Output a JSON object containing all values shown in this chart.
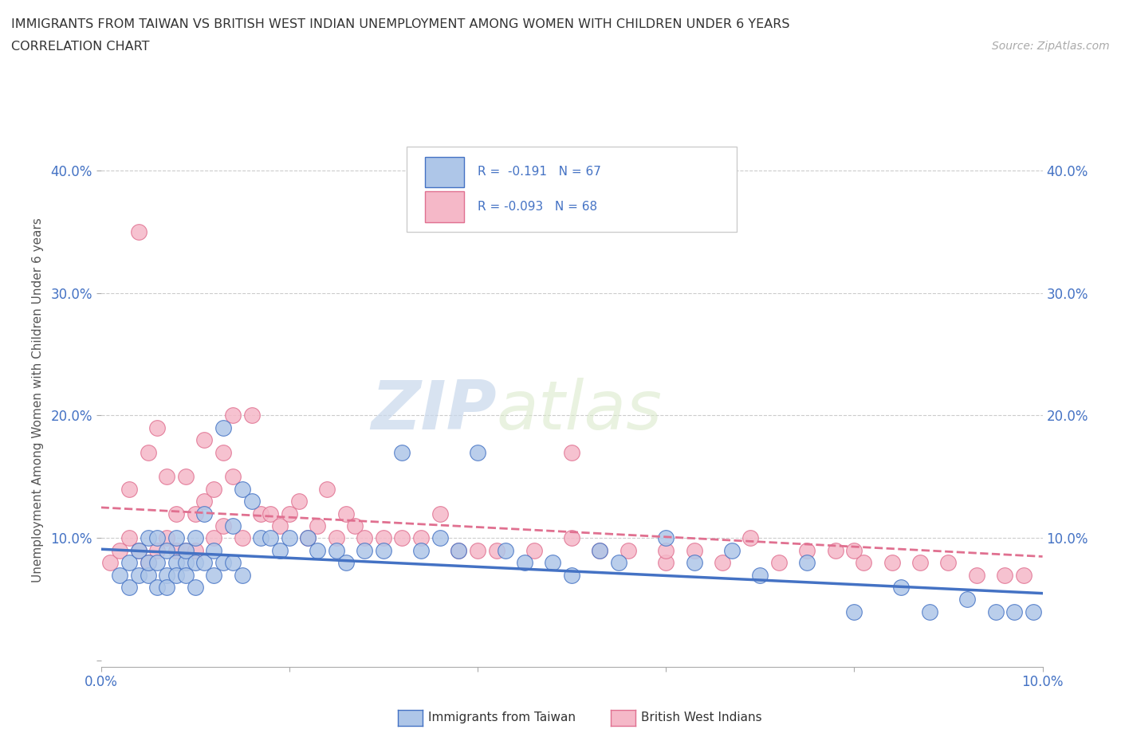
{
  "title_line1": "IMMIGRANTS FROM TAIWAN VS BRITISH WEST INDIAN UNEMPLOYMENT AMONG WOMEN WITH CHILDREN UNDER 6 YEARS",
  "title_line2": "CORRELATION CHART",
  "source_text": "Source: ZipAtlas.com",
  "ylabel": "Unemployment Among Women with Children Under 6 years",
  "xmin": 0.0,
  "xmax": 0.1,
  "ymin": -0.005,
  "ymax": 0.43,
  "yticks": [
    0.0,
    0.1,
    0.2,
    0.3,
    0.4
  ],
  "ytick_labels_left": [
    "",
    "10.0%",
    "20.0%",
    "30.0%",
    "40.0%"
  ],
  "ytick_labels_right": [
    "",
    "10.0%",
    "20.0%",
    "30.0%",
    "40.0%"
  ],
  "xticks": [
    0.0,
    0.02,
    0.04,
    0.06,
    0.08,
    0.1
  ],
  "xtick_labels": [
    "0.0%",
    "",
    "",
    "",
    "",
    "10.0%"
  ],
  "taiwan_r": -0.191,
  "taiwan_n": 67,
  "bwi_r": -0.093,
  "bwi_n": 68,
  "taiwan_color": "#aec6e8",
  "bwi_color": "#f5b8c8",
  "taiwan_edge_color": "#4472c4",
  "bwi_edge_color": "#e07090",
  "taiwan_line_color": "#4472c4",
  "bwi_line_color": "#e07090",
  "watermark_zip": "ZIP",
  "watermark_atlas": "atlas",
  "taiwan_scatter_x": [
    0.002,
    0.003,
    0.003,
    0.004,
    0.004,
    0.005,
    0.005,
    0.005,
    0.006,
    0.006,
    0.006,
    0.007,
    0.007,
    0.007,
    0.008,
    0.008,
    0.008,
    0.009,
    0.009,
    0.009,
    0.01,
    0.01,
    0.01,
    0.011,
    0.011,
    0.012,
    0.012,
    0.013,
    0.013,
    0.014,
    0.014,
    0.015,
    0.015,
    0.016,
    0.017,
    0.018,
    0.019,
    0.02,
    0.022,
    0.023,
    0.025,
    0.026,
    0.028,
    0.03,
    0.032,
    0.034,
    0.036,
    0.038,
    0.04,
    0.043,
    0.045,
    0.048,
    0.05,
    0.053,
    0.055,
    0.06,
    0.063,
    0.067,
    0.07,
    0.075,
    0.08,
    0.085,
    0.088,
    0.092,
    0.095,
    0.097,
    0.099
  ],
  "taiwan_scatter_y": [
    0.07,
    0.06,
    0.08,
    0.07,
    0.09,
    0.07,
    0.08,
    0.1,
    0.06,
    0.08,
    0.1,
    0.07,
    0.09,
    0.06,
    0.08,
    0.07,
    0.1,
    0.08,
    0.09,
    0.07,
    0.1,
    0.08,
    0.06,
    0.12,
    0.08,
    0.09,
    0.07,
    0.19,
    0.08,
    0.11,
    0.08,
    0.14,
    0.07,
    0.13,
    0.1,
    0.1,
    0.09,
    0.1,
    0.1,
    0.09,
    0.09,
    0.08,
    0.09,
    0.09,
    0.17,
    0.09,
    0.1,
    0.09,
    0.17,
    0.09,
    0.08,
    0.08,
    0.07,
    0.09,
    0.08,
    0.1,
    0.08,
    0.09,
    0.07,
    0.08,
    0.04,
    0.06,
    0.04,
    0.05,
    0.04,
    0.04,
    0.04
  ],
  "bwi_scatter_x": [
    0.001,
    0.002,
    0.003,
    0.003,
    0.004,
    0.004,
    0.005,
    0.005,
    0.006,
    0.006,
    0.007,
    0.007,
    0.008,
    0.008,
    0.009,
    0.009,
    0.01,
    0.01,
    0.011,
    0.011,
    0.012,
    0.012,
    0.013,
    0.013,
    0.014,
    0.014,
    0.015,
    0.016,
    0.017,
    0.018,
    0.019,
    0.02,
    0.021,
    0.022,
    0.023,
    0.024,
    0.025,
    0.026,
    0.027,
    0.028,
    0.03,
    0.032,
    0.034,
    0.036,
    0.038,
    0.04,
    0.042,
    0.046,
    0.05,
    0.053,
    0.056,
    0.06,
    0.063,
    0.066,
    0.069,
    0.072,
    0.075,
    0.078,
    0.081,
    0.084,
    0.087,
    0.09,
    0.093,
    0.096,
    0.05,
    0.06,
    0.08,
    0.098
  ],
  "bwi_scatter_y": [
    0.08,
    0.09,
    0.14,
    0.1,
    0.09,
    0.35,
    0.08,
    0.17,
    0.09,
    0.19,
    0.1,
    0.15,
    0.12,
    0.09,
    0.15,
    0.09,
    0.12,
    0.09,
    0.18,
    0.13,
    0.1,
    0.14,
    0.17,
    0.11,
    0.2,
    0.15,
    0.1,
    0.2,
    0.12,
    0.12,
    0.11,
    0.12,
    0.13,
    0.1,
    0.11,
    0.14,
    0.1,
    0.12,
    0.11,
    0.1,
    0.1,
    0.1,
    0.1,
    0.12,
    0.09,
    0.09,
    0.09,
    0.09,
    0.1,
    0.09,
    0.09,
    0.08,
    0.09,
    0.08,
    0.1,
    0.08,
    0.09,
    0.09,
    0.08,
    0.08,
    0.08,
    0.08,
    0.07,
    0.07,
    0.17,
    0.09,
    0.09,
    0.07
  ],
  "taiwan_trend": [
    0.091,
    0.055
  ],
  "bwi_trend": [
    0.125,
    0.085
  ]
}
